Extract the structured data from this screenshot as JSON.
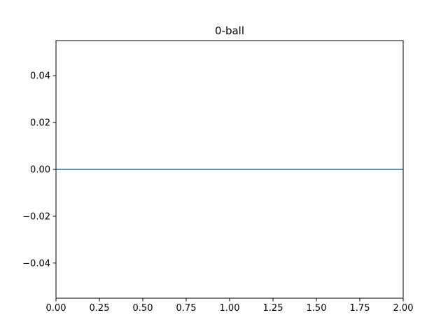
{
  "chart_data": {
    "type": "line",
    "title": "0-ball",
    "xlabel": "",
    "ylabel": "",
    "xlim": [
      0.0,
      2.0
    ],
    "ylim": [
      -0.055,
      0.055
    ],
    "xticks": [
      0.0,
      0.25,
      0.5,
      0.75,
      1.0,
      1.25,
      1.5,
      1.75,
      2.0
    ],
    "xtick_labels": [
      "0.00",
      "0.25",
      "0.50",
      "0.75",
      "1.00",
      "1.25",
      "1.50",
      "1.75",
      "2.00"
    ],
    "yticks": [
      -0.04,
      -0.02,
      0.0,
      0.02,
      0.04
    ],
    "ytick_labels": [
      "−0.04",
      "−0.02",
      "0.00",
      "0.02",
      "0.04"
    ],
    "grid": false,
    "series": [
      {
        "x": [
          0.0,
          2.0
        ],
        "y": [
          0.0,
          0.0
        ],
        "color": "#1f77b4"
      }
    ]
  }
}
